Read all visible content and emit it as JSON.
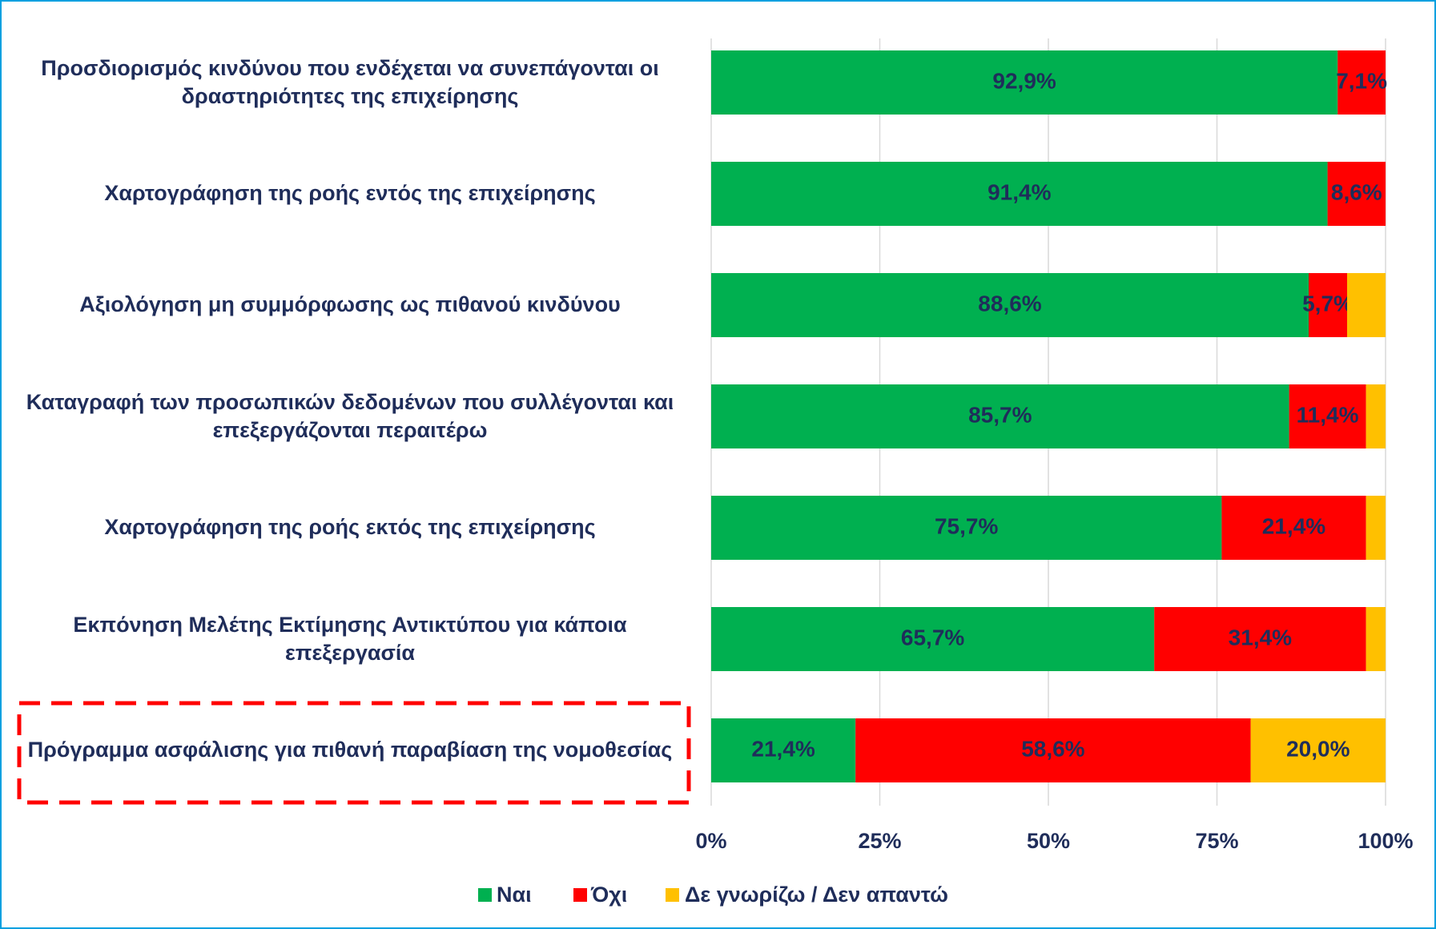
{
  "chart_data": {
    "type": "stacked-bar-horizontal",
    "categories": [
      "Προσδιορισμός κινδύνου που ενδέχεται να συνεπάγονται οι δραστηριότητες της επιχείρησης",
      "Χαρτογράφηση της ροής εντός της επιχείρησης",
      "Αξιολόγηση μη συμμόρφωσης ως πιθανού κινδύνου",
      "Καταγραφή των προσωπικών δεδομένων που συλλέγονται και επεξεργάζονται περαιτέρω",
      "Χαρτογράφηση της ροής εκτός της επιχείρησης",
      "Εκπόνηση Μελέτης Εκτίμησης Αντικτύπου για κάποια επεξεργασία",
      "Πρόγραμμα ασφάλισης για πιθανή παραβίαση της νομοθεσίας"
    ],
    "series": [
      {
        "name": "Ναι",
        "color": "#00b050",
        "values": [
          92.9,
          91.4,
          88.6,
          85.7,
          75.7,
          65.7,
          21.4
        ],
        "value_labels": [
          "92,9%",
          "91,4%",
          "88,6%",
          "85,7%",
          "75,7%",
          "65,7%",
          "21,4%"
        ]
      },
      {
        "name": "Όχι",
        "color": "#ff0000",
        "values": [
          7.1,
          8.6,
          5.7,
          11.4,
          21.4,
          31.4,
          58.6
        ],
        "value_labels": [
          "7,1%",
          "8,6%",
          "5,7%",
          "11,4%",
          "21,4%",
          "31,4%",
          "58,6%"
        ]
      },
      {
        "name": "Δε γνωρίζω / Δεν απαντώ",
        "color": "#ffc000",
        "values": [
          0,
          0,
          5.7,
          2.9,
          2.9,
          2.9,
          20.0
        ],
        "value_labels": [
          null,
          null,
          null,
          null,
          null,
          null,
          "20,0%"
        ]
      }
    ],
    "xlim": [
      0,
      100
    ],
    "xticks": [
      {
        "value": 0,
        "label": "0%"
      },
      {
        "value": 25,
        "label": "25%"
      },
      {
        "value": 50,
        "label": "50%"
      },
      {
        "value": 75,
        "label": "75%"
      },
      {
        "value": 100,
        "label": "100%"
      }
    ],
    "grid": true
  }
}
